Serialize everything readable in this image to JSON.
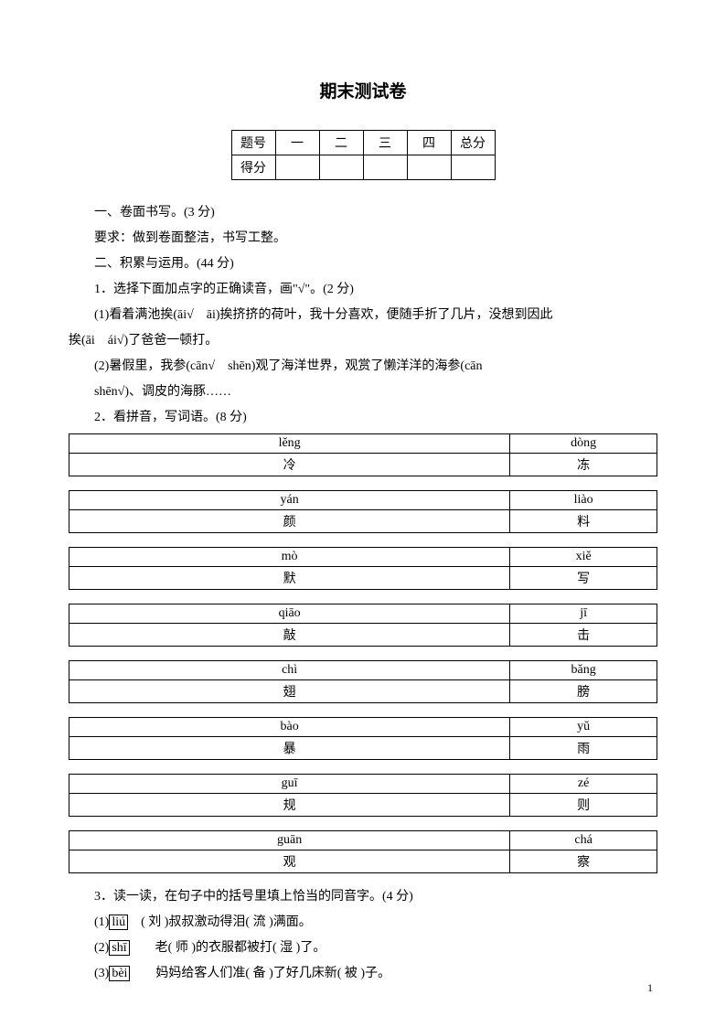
{
  "title": "期末测试卷",
  "score_table": {
    "header_label": "题号",
    "columns": [
      "一",
      "二",
      "三",
      "四",
      "总分"
    ],
    "row_label": "得分"
  },
  "section1": {
    "heading": "一、卷面书写。(3 分)",
    "requirement": "要求：做到卷面整洁，书写工整。"
  },
  "section2": {
    "heading": "二、积累与运用。(44 分)",
    "q1": {
      "prompt": "1．选择下面加点字的正确读音，画\"√\"。(2 分)",
      "line1a": "(1)看着满池挨(āi√　āi)挨挤挤的荷叶，我十分喜欢，便随手折了几片，没想到因此",
      "line1b": "挨(āi　ái√)了爸爸一顿打。",
      "line2a": "(2)暑假里，我参(cān√　shēn)观了海洋世界，观赏了懒洋洋的海参(cān",
      "line2b": "shēn√)、调皮的海豚……"
    },
    "q2": {
      "prompt": "2．看拼音，写词语。(8 分)",
      "tables": [
        {
          "left_pinyin": "lěng",
          "left_char": "冷",
          "right_pinyin": "dòng",
          "right_char": "冻"
        },
        {
          "left_pinyin": "yán",
          "left_char": "颜",
          "right_pinyin": "liào",
          "right_char": "料"
        },
        {
          "left_pinyin": "mò",
          "left_char": "默",
          "right_pinyin": "xiě",
          "right_char": "写"
        },
        {
          "left_pinyin": "qiāo",
          "left_char": "敲",
          "right_pinyin": "jī",
          "right_char": "击"
        },
        {
          "left_pinyin": "chì",
          "left_char": "翅",
          "right_pinyin": "bǎng",
          "right_char": "膀"
        },
        {
          "left_pinyin": "bào",
          "left_char": "暴",
          "right_pinyin": "yǔ",
          "right_char": "雨"
        },
        {
          "left_pinyin": "guī",
          "left_char": "规",
          "right_pinyin": "zé",
          "right_char": "则"
        },
        {
          "left_pinyin": "guān",
          "left_char": "观",
          "right_pinyin": "chá",
          "right_char": "察"
        }
      ]
    },
    "q3": {
      "prompt": "3．读一读，在句子中的括号里填上恰当的同音字。(4 分)",
      "items": [
        {
          "prefix": "(1)",
          "boxed": "liú",
          "rest": "　( 刘 )叔叔激动得泪( 流 )满面。"
        },
        {
          "prefix": "(2)",
          "boxed": "shī",
          "rest": "　　老( 师 )的衣服都被打( 湿 )了。"
        },
        {
          "prefix": "(3)",
          "boxed": "bèi",
          "rest": "　　妈妈给客人们准( 备 )了好几床新( 被 )子。"
        }
      ]
    }
  },
  "page_number": "1"
}
